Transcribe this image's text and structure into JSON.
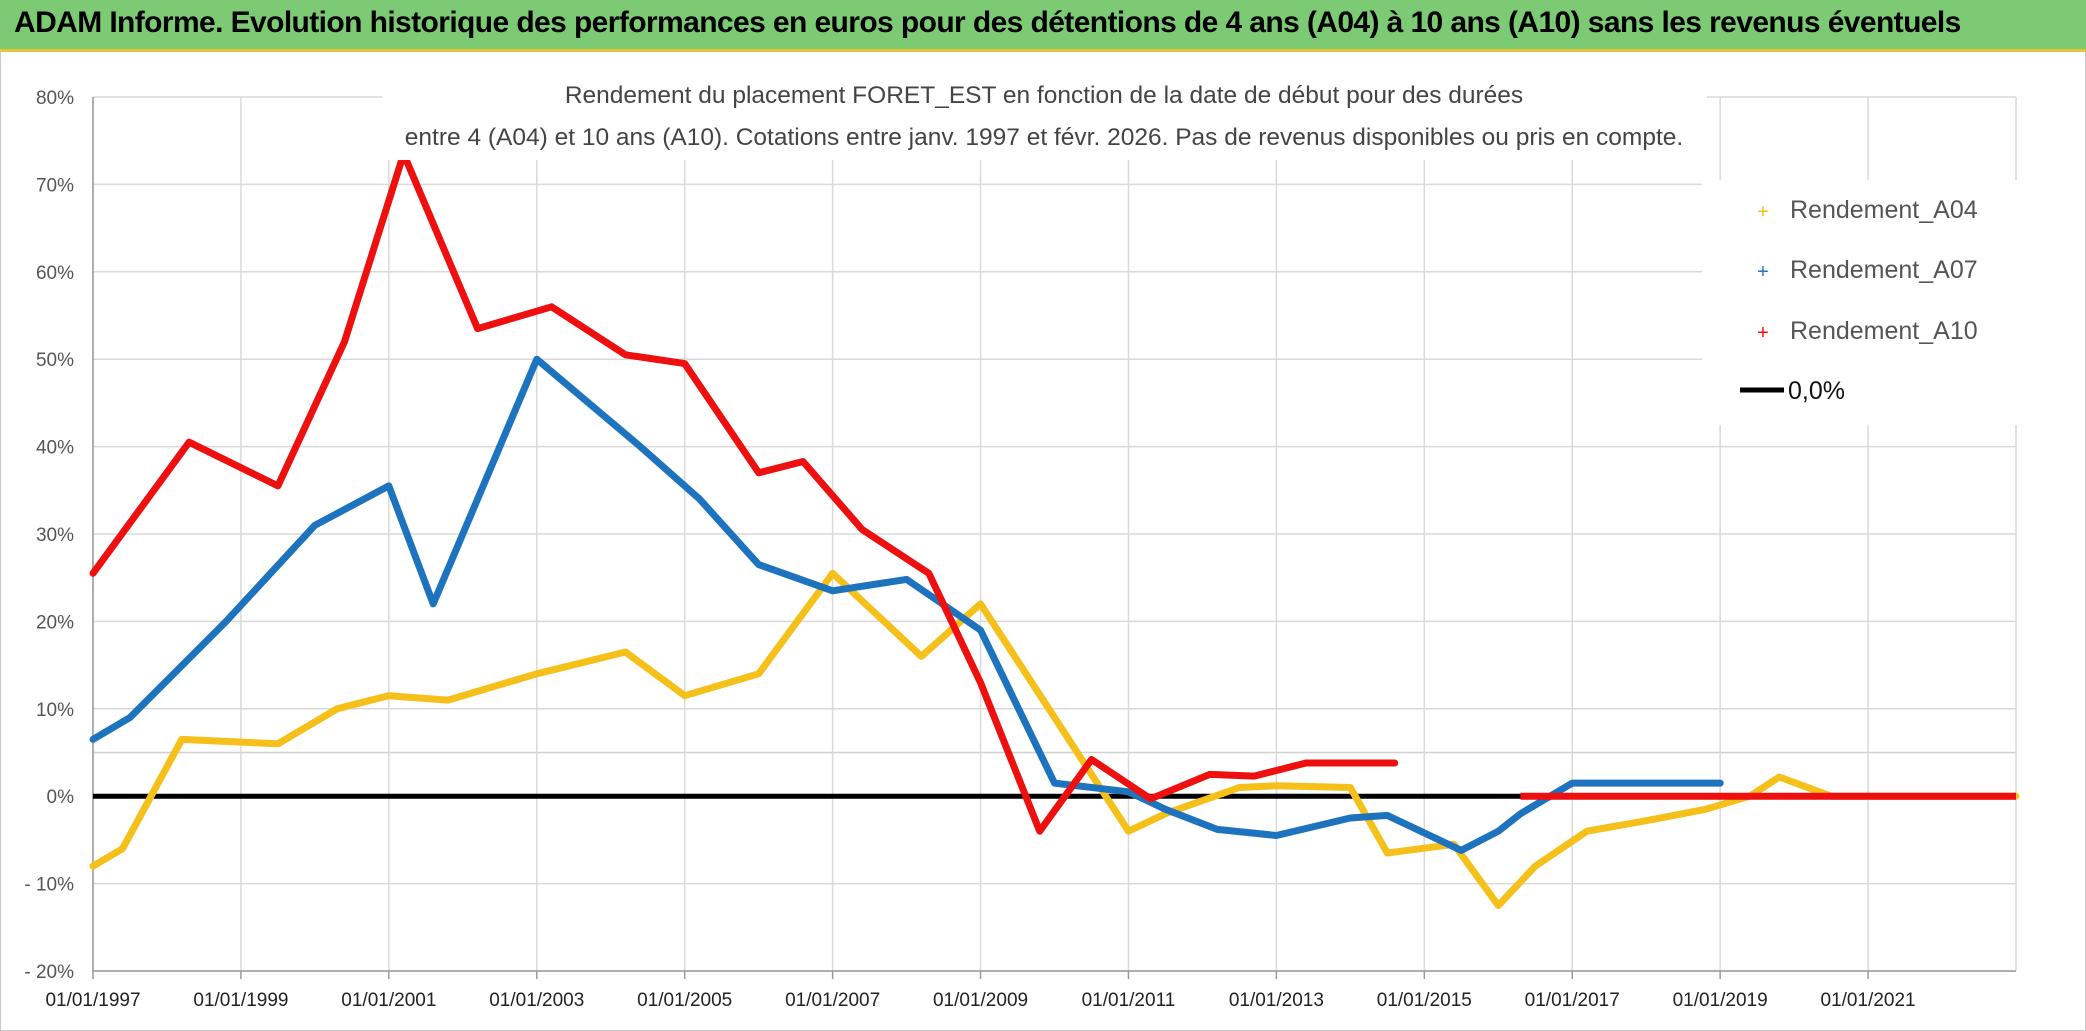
{
  "banner": {
    "title": "ADAM Informe. Evolution historique des performances en euros pour des détentions de 4 ans (A04) à 10 ans (A10) sans les revenus éventuels"
  },
  "colors": {
    "banner_bg": "#7ccb74",
    "banner_accent": "#e9c33a",
    "a04": "#f5c01a",
    "a07": "#1e73be",
    "a10": "#ee0f0f",
    "zero": "#000000",
    "grid": "#d9d9d9"
  },
  "chart_data": {
    "type": "line",
    "title_line1": "Rendement du placement FORET_EST en fonction de la date de début pour des durées",
    "title_line2": "entre 4 (A04) et 10 ans (A10). Cotations entre janv. 1997 et févr. 2026. Pas de revenus disponibles ou pris en compte.",
    "xlabel": "",
    "ylabel": "",
    "x_range": [
      1997.0,
      2023.0
    ],
    "ylim": [
      -20,
      80
    ],
    "y_ticks": [
      -20,
      -10,
      0,
      10,
      20,
      30,
      40,
      50,
      60,
      70,
      80
    ],
    "y_tick_labels": [
      "- 20%",
      "- 10%",
      "0%",
      "10%",
      "20%",
      "30%",
      "40%",
      "50%",
      "60%",
      "70%",
      "80%"
    ],
    "x_ticks": [
      1997,
      1999,
      2001,
      2003,
      2005,
      2007,
      2009,
      2011,
      2013,
      2015,
      2017,
      2019,
      2021
    ],
    "x_tick_labels": [
      "01/01/1997",
      "01/01/1999",
      "01/01/2001",
      "01/01/2003",
      "01/01/2005",
      "01/01/2007",
      "01/01/2009",
      "01/01/2011",
      "01/01/2013",
      "01/01/2015",
      "01/01/2017",
      "01/01/2019",
      "01/01/2021"
    ],
    "grid": true,
    "legend_position": "top-right",
    "series": [
      {
        "name": "Rendement_A04",
        "color": "#f5c01a",
        "x": [
          1997.0,
          1997.4,
          1998.2,
          1999.5,
          2000.3,
          2001.0,
          2001.8,
          2003.0,
          2004.2,
          2005.0,
          2006.0,
          2007.0,
          2008.2,
          2009.0,
          2010.0,
          2011.0,
          2011.5,
          2012.5,
          2013.0,
          2014.0,
          2014.5,
          2015.4,
          2016.0,
          2016.5,
          2017.2,
          2018.0,
          2018.8,
          2019.4,
          2019.8,
          2020.5,
          2021.0,
          2021.5,
          2022.0,
          2022.5,
          2023.0
        ],
        "y": [
          -8,
          -6,
          6.5,
          6,
          10,
          11.5,
          11,
          14,
          16.5,
          11.5,
          14,
          25.5,
          16,
          22,
          9,
          -4,
          -2,
          1,
          1.2,
          1,
          -6.5,
          -5.5,
          -12.5,
          -8,
          -4,
          -2.8,
          -1.5,
          0,
          2.2,
          0,
          0,
          0,
          0,
          0,
          0
        ]
      },
      {
        "name": "Rendement_A07",
        "color": "#1e73be",
        "x": [
          1997.0,
          1997.5,
          1998.8,
          2000.0,
          2001.0,
          2001.6,
          2003.0,
          2004.4,
          2005.2,
          2006.0,
          2007.0,
          2008.0,
          2009.0,
          2010.0,
          2011.0,
          2011.5,
          2012.2,
          2013.0,
          2014.0,
          2014.5,
          2015.5,
          2016.0,
          2016.3,
          2017.0,
          2017.5,
          2018.5,
          2019.0
        ],
        "y": [
          6.5,
          9,
          20,
          31,
          35.5,
          22,
          50,
          40,
          34,
          26.5,
          23.5,
          24.8,
          19,
          1.5,
          0.5,
          -1.5,
          -3.8,
          -4.5,
          -2.5,
          -2.2,
          -6.2,
          -4,
          -2,
          1.5,
          1.5,
          1.5,
          1.5
        ]
      },
      {
        "name": "Rendement_A10",
        "color": "#ee0f0f",
        "x": [
          1997.0,
          1998.3,
          1999.5,
          2000.4,
          2001.2,
          2002.2,
          2003.2,
          2004.2,
          2005.0,
          2006.0,
          2006.6,
          2007.4,
          2008.3,
          2009.0,
          2009.8,
          2010.5,
          2011.3,
          2012.1,
          2012.7,
          2013.4,
          2014.1,
          2014.6
        ],
        "y": [
          25.5,
          40.5,
          35.5,
          52,
          73.5,
          53.5,
          56,
          50.5,
          49.5,
          37,
          38.3,
          30.5,
          25.5,
          13,
          -4,
          4.2,
          -0.3,
          2.5,
          2.3,
          3.8,
          3.8,
          3.8
        ]
      }
    ],
    "zero_line": {
      "name": "0,0%",
      "value": 0,
      "color": "#000000"
    }
  }
}
